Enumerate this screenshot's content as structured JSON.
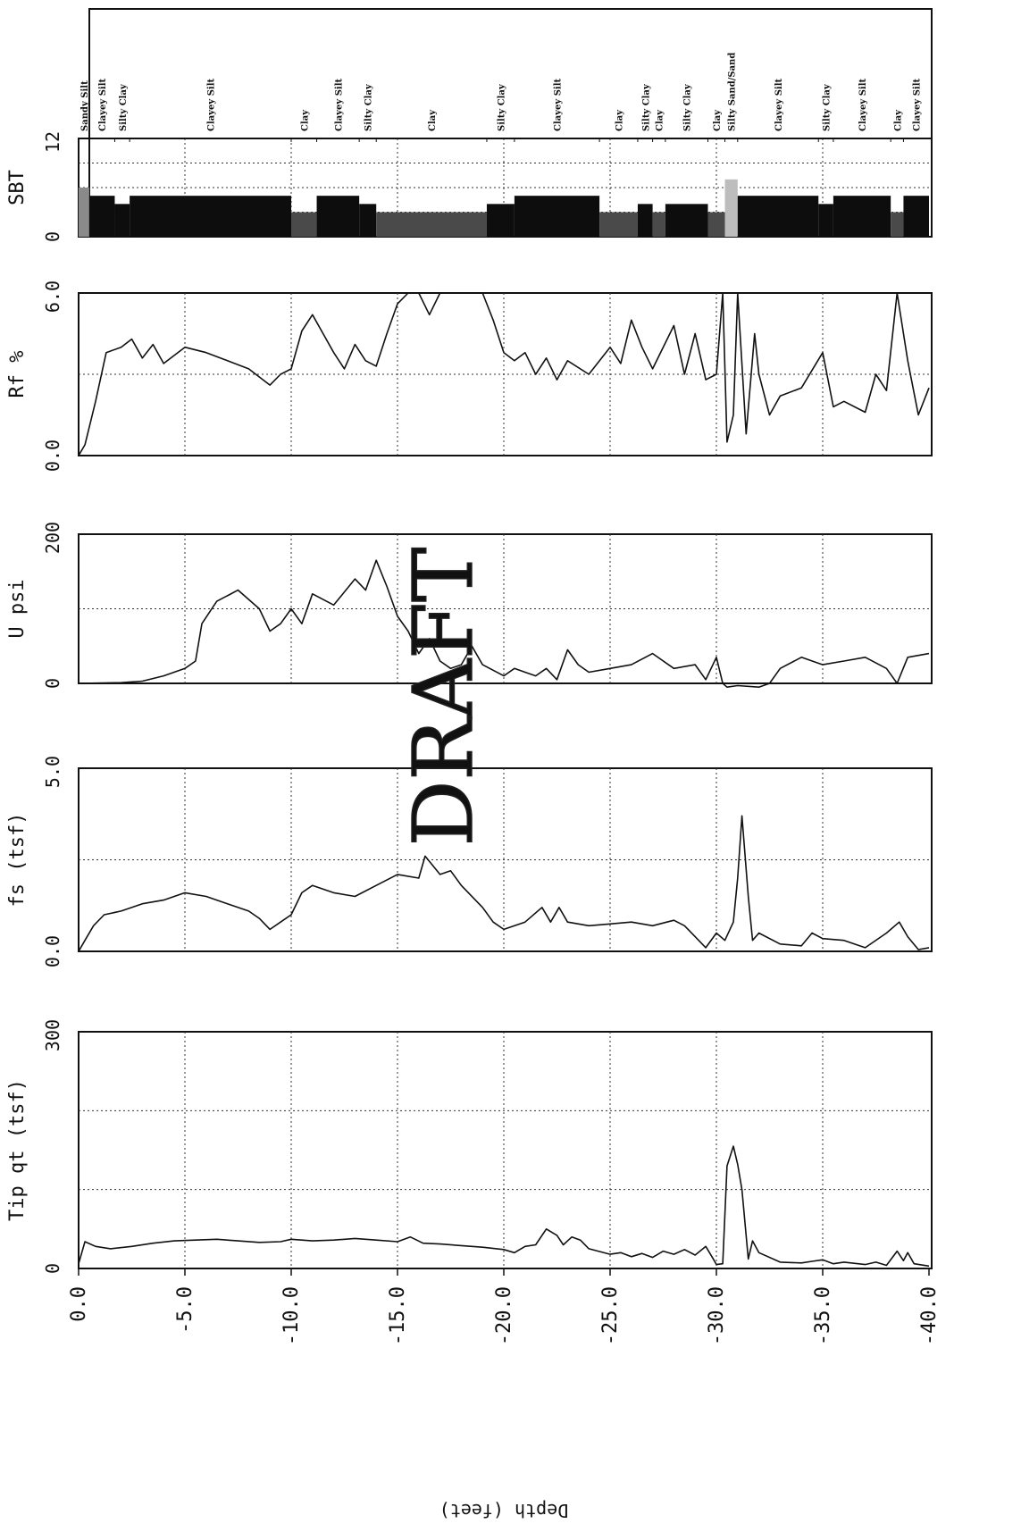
{
  "chart_data": {
    "type": "line",
    "orientation": "rotated-90-ccw",
    "depth_axis": {
      "label": "Depth (feet)",
      "range": [
        0,
        -40
      ],
      "ticks": [
        "0.0",
        "-5.0",
        "-10.0",
        "-15.0",
        "-20.0",
        "-25.0",
        "-30.0",
        "-35.0",
        "-40.0"
      ]
    },
    "watermark": "DRAFT",
    "grid": true,
    "panels": [
      {
        "id": "tip",
        "label": "Tip qt (tsf)",
        "range": [
          0,
          300
        ],
        "tick_labels": [
          "0",
          "300"
        ],
        "gridlines": [
          0,
          100,
          200,
          300
        ],
        "points": [
          [
            0,
            6
          ],
          [
            0.3,
            34
          ],
          [
            0.8,
            28
          ],
          [
            1.5,
            25
          ],
          [
            2.5,
            28
          ],
          [
            3.5,
            32
          ],
          [
            4.5,
            35
          ],
          [
            5.5,
            36
          ],
          [
            6.5,
            37
          ],
          [
            7.5,
            35
          ],
          [
            8.5,
            33
          ],
          [
            9.5,
            34
          ],
          [
            10,
            37
          ],
          [
            11,
            35
          ],
          [
            12,
            36
          ],
          [
            13,
            38
          ],
          [
            14,
            36
          ],
          [
            15,
            34
          ],
          [
            15.6,
            40
          ],
          [
            16.2,
            32
          ],
          [
            17,
            31
          ],
          [
            18,
            29
          ],
          [
            19,
            27
          ],
          [
            20,
            24
          ],
          [
            20.5,
            20
          ],
          [
            21,
            28
          ],
          [
            21.5,
            30
          ],
          [
            22,
            50
          ],
          [
            22.5,
            42
          ],
          [
            22.8,
            30
          ],
          [
            23.2,
            40
          ],
          [
            23.6,
            36
          ],
          [
            24,
            25
          ],
          [
            25,
            18
          ],
          [
            25.5,
            20
          ],
          [
            26,
            15
          ],
          [
            26.5,
            19
          ],
          [
            27,
            14
          ],
          [
            27.5,
            22
          ],
          [
            28,
            18
          ],
          [
            28.5,
            24
          ],
          [
            29,
            17
          ],
          [
            29.5,
            28
          ],
          [
            29.9,
            10
          ],
          [
            30,
            5
          ],
          [
            30.3,
            6
          ],
          [
            30.5,
            130
          ],
          [
            30.8,
            155
          ],
          [
            31,
            132
          ],
          [
            31.2,
            100
          ],
          [
            31.5,
            12
          ],
          [
            31.7,
            35
          ],
          [
            32,
            20
          ],
          [
            33,
            8
          ],
          [
            34,
            7
          ],
          [
            34.5,
            9
          ],
          [
            35,
            11
          ],
          [
            35.5,
            6
          ],
          [
            36,
            8
          ],
          [
            37,
            5
          ],
          [
            37.5,
            8
          ],
          [
            38,
            4
          ],
          [
            38.5,
            22
          ],
          [
            38.8,
            10
          ],
          [
            39,
            20
          ],
          [
            39.3,
            6
          ],
          [
            40,
            3
          ]
        ]
      },
      {
        "id": "fs",
        "label": "fs (tsf)",
        "range": [
          0,
          5
        ],
        "tick_labels": [
          "0.0",
          "5.0"
        ],
        "gridlines": [
          0,
          2.5,
          5
        ],
        "points": [
          [
            0,
            0
          ],
          [
            0.3,
            0.3
          ],
          [
            0.7,
            0.7
          ],
          [
            1.2,
            1.0
          ],
          [
            2,
            1.1
          ],
          [
            3,
            1.3
          ],
          [
            4,
            1.4
          ],
          [
            5,
            1.6
          ],
          [
            6,
            1.5
          ],
          [
            7,
            1.3
          ],
          [
            8,
            1.1
          ],
          [
            8.5,
            0.9
          ],
          [
            9,
            0.6
          ],
          [
            9.5,
            0.8
          ],
          [
            10,
            1.0
          ],
          [
            10.5,
            1.6
          ],
          [
            11,
            1.8
          ],
          [
            12,
            1.6
          ],
          [
            13,
            1.5
          ],
          [
            14,
            1.8
          ],
          [
            15,
            2.1
          ],
          [
            16,
            2.0
          ],
          [
            16.3,
            2.6
          ],
          [
            17,
            2.1
          ],
          [
            17.5,
            2.2
          ],
          [
            18,
            1.8
          ],
          [
            19,
            1.2
          ],
          [
            19.5,
            0.8
          ],
          [
            20,
            0.6
          ],
          [
            21,
            0.8
          ],
          [
            21.8,
            1.2
          ],
          [
            22.2,
            0.8
          ],
          [
            22.6,
            1.2
          ],
          [
            23,
            0.8
          ],
          [
            24,
            0.7
          ],
          [
            25,
            0.75
          ],
          [
            26,
            0.8
          ],
          [
            27,
            0.7
          ],
          [
            28,
            0.85
          ],
          [
            28.5,
            0.7
          ],
          [
            29,
            0.4
          ],
          [
            29.5,
            0.1
          ],
          [
            30,
            0.5
          ],
          [
            30.4,
            0.3
          ],
          [
            30.8,
            0.8
          ],
          [
            31,
            2.0
          ],
          [
            31.2,
            3.7
          ],
          [
            31.5,
            1.5
          ],
          [
            31.7,
            0.3
          ],
          [
            32,
            0.5
          ],
          [
            33,
            0.2
          ],
          [
            34,
            0.15
          ],
          [
            34.5,
            0.5
          ],
          [
            35,
            0.35
          ],
          [
            36,
            0.3
          ],
          [
            37,
            0.1
          ],
          [
            38,
            0.5
          ],
          [
            38.6,
            0.8
          ],
          [
            39,
            0.4
          ],
          [
            39.5,
            0.05
          ],
          [
            40,
            0.1
          ]
        ]
      },
      {
        "id": "u",
        "label": "U psi",
        "range": [
          0,
          200
        ],
        "tick_labels": [
          "0",
          "200"
        ],
        "gridlines": [
          0,
          100,
          200
        ],
        "points": [
          [
            0,
            0
          ],
          [
            2,
            1
          ],
          [
            3,
            3
          ],
          [
            4,
            10
          ],
          [
            5,
            20
          ],
          [
            5.5,
            30
          ],
          [
            5.8,
            80
          ],
          [
            6.5,
            110
          ],
          [
            7.5,
            125
          ],
          [
            8.5,
            100
          ],
          [
            9,
            70
          ],
          [
            9.5,
            80
          ],
          [
            10,
            100
          ],
          [
            10.5,
            80
          ],
          [
            11,
            120
          ],
          [
            12,
            105
          ],
          [
            13,
            140
          ],
          [
            13.5,
            125
          ],
          [
            14,
            165
          ],
          [
            14.5,
            130
          ],
          [
            15,
            90
          ],
          [
            15.5,
            70
          ],
          [
            16,
            40
          ],
          [
            16.5,
            60
          ],
          [
            17,
            30
          ],
          [
            17.5,
            20
          ],
          [
            18,
            25
          ],
          [
            18.5,
            50
          ],
          [
            19,
            25
          ],
          [
            20,
            10
          ],
          [
            20.5,
            20
          ],
          [
            21,
            15
          ],
          [
            21.5,
            10
          ],
          [
            22,
            20
          ],
          [
            22.5,
            5
          ],
          [
            23,
            45
          ],
          [
            23.5,
            25
          ],
          [
            24,
            15
          ],
          [
            25,
            20
          ],
          [
            26,
            25
          ],
          [
            27,
            40
          ],
          [
            28,
            20
          ],
          [
            29,
            25
          ],
          [
            29.5,
            5
          ],
          [
            30,
            35
          ],
          [
            30.3,
            0
          ],
          [
            30.5,
            -5
          ],
          [
            31,
            -3
          ],
          [
            32,
            -5
          ],
          [
            32.5,
            0
          ],
          [
            33,
            20
          ],
          [
            34,
            35
          ],
          [
            35,
            25
          ],
          [
            36,
            30
          ],
          [
            37,
            35
          ],
          [
            38,
            20
          ],
          [
            38.5,
            0
          ],
          [
            39,
            35
          ],
          [
            40,
            40
          ]
        ]
      },
      {
        "id": "rf",
        "label": "Rf %",
        "range": [
          0,
          6
        ],
        "tick_labels": [
          "0.0",
          "6.0"
        ],
        "gridlines": [
          0,
          3,
          6
        ],
        "points": [
          [
            0,
            0
          ],
          [
            0.3,
            0.4
          ],
          [
            0.8,
            2.0
          ],
          [
            1.3,
            3.8
          ],
          [
            2,
            4.0
          ],
          [
            2.5,
            4.3
          ],
          [
            3,
            3.6
          ],
          [
            3.5,
            4.1
          ],
          [
            4,
            3.4
          ],
          [
            5,
            4.0
          ],
          [
            6,
            3.8
          ],
          [
            7,
            3.5
          ],
          [
            8,
            3.2
          ],
          [
            8.5,
            2.9
          ],
          [
            9,
            2.6
          ],
          [
            9.5,
            3.0
          ],
          [
            10,
            3.2
          ],
          [
            10.5,
            4.6
          ],
          [
            11,
            5.2
          ],
          [
            11.5,
            4.5
          ],
          [
            12,
            3.8
          ],
          [
            12.5,
            3.2
          ],
          [
            13,
            4.1
          ],
          [
            13.5,
            3.5
          ],
          [
            14,
            3.3
          ],
          [
            14.5,
            4.5
          ],
          [
            15,
            5.6
          ],
          [
            15.5,
            6.0
          ],
          [
            16,
            6.0
          ],
          [
            16.5,
            5.2
          ],
          [
            17,
            6.0
          ],
          [
            18,
            6.0
          ],
          [
            19,
            6.0
          ],
          [
            19.5,
            5.0
          ],
          [
            20,
            3.8
          ],
          [
            20.5,
            3.5
          ],
          [
            21,
            3.8
          ],
          [
            21.5,
            3.0
          ],
          [
            22,
            3.6
          ],
          [
            22.5,
            2.8
          ],
          [
            23,
            3.5
          ],
          [
            24,
            3.0
          ],
          [
            25,
            4.0
          ],
          [
            25.5,
            3.4
          ],
          [
            26,
            5.0
          ],
          [
            26.5,
            4.0
          ],
          [
            27,
            3.2
          ],
          [
            28,
            4.8
          ],
          [
            28.5,
            3.0
          ],
          [
            29,
            4.5
          ],
          [
            29.5,
            2.8
          ],
          [
            30,
            3.0
          ],
          [
            30.3,
            6.0
          ],
          [
            30.5,
            0.5
          ],
          [
            30.8,
            1.5
          ],
          [
            31,
            6.0
          ],
          [
            31.4,
            0.8
          ],
          [
            31.8,
            4.5
          ],
          [
            32,
            3.0
          ],
          [
            32.5,
            1.5
          ],
          [
            33,
            2.2
          ],
          [
            34,
            2.5
          ],
          [
            35,
            3.8
          ],
          [
            35.5,
            1.8
          ],
          [
            36,
            2.0
          ],
          [
            37,
            1.6
          ],
          [
            37.5,
            3.0
          ],
          [
            38,
            2.4
          ],
          [
            38.5,
            6.0
          ],
          [
            39,
            3.5
          ],
          [
            39.5,
            1.5
          ],
          [
            40,
            2.5
          ]
        ]
      },
      {
        "id": "sbt",
        "label": "SBT",
        "range": [
          0,
          12
        ],
        "tick_labels": [
          "0",
          "12"
        ],
        "gridlines": [
          0,
          3,
          6,
          9,
          12
        ],
        "points": []
      }
    ],
    "sbt_zones": [
      {
        "from": 0.0,
        "to": 0.5,
        "zone": 6,
        "label": "Sandy Silt",
        "color": "#8a8a8a"
      },
      {
        "from": 0.5,
        "to": 1.7,
        "zone": 5,
        "label": "Clayey Silt",
        "color": "#0d0d0d"
      },
      {
        "from": 1.7,
        "to": 2.4,
        "zone": 4,
        "label": "Silty Clay",
        "color": "#0d0d0d"
      },
      {
        "from": 2.4,
        "to": 10.0,
        "zone": 5,
        "label": "Clayey Silt",
        "color": "#0d0d0d"
      },
      {
        "from": 10.0,
        "to": 11.2,
        "zone": 3,
        "label": "Clay",
        "color": "#4a4a4a"
      },
      {
        "from": 11.2,
        "to": 13.2,
        "zone": 5,
        "label": "Clayey Silt",
        "color": "#0d0d0d"
      },
      {
        "from": 13.2,
        "to": 14.0,
        "zone": 4,
        "label": "Silty Clay",
        "color": "#0d0d0d"
      },
      {
        "from": 14.0,
        "to": 19.2,
        "zone": 3,
        "label": "Clay",
        "color": "#4a4a4a"
      },
      {
        "from": 19.2,
        "to": 20.5,
        "zone": 4,
        "label": "Silty Clay",
        "color": "#0d0d0d"
      },
      {
        "from": 20.5,
        "to": 24.5,
        "zone": 5,
        "label": "Clayey Silt",
        "color": "#0d0d0d"
      },
      {
        "from": 24.5,
        "to": 26.3,
        "zone": 3,
        "label": "Clay",
        "color": "#4a4a4a"
      },
      {
        "from": 26.3,
        "to": 27.0,
        "zone": 4,
        "label": "Silty Clay",
        "color": "#0d0d0d"
      },
      {
        "from": 27.0,
        "to": 27.6,
        "zone": 3,
        "label": "Clay",
        "color": "#4a4a4a"
      },
      {
        "from": 27.6,
        "to": 29.6,
        "zone": 4,
        "label": "Silty Clay",
        "color": "#0d0d0d"
      },
      {
        "from": 29.6,
        "to": 30.4,
        "zone": 3,
        "label": "Clay",
        "color": "#4a4a4a"
      },
      {
        "from": 30.4,
        "to": 31.0,
        "zone": 7,
        "label": "Silty Sand/Sand",
        "color": "#bdbdbd"
      },
      {
        "from": 31.0,
        "to": 34.8,
        "zone": 5,
        "label": "Clayey Silt",
        "color": "#0d0d0d"
      },
      {
        "from": 34.8,
        "to": 35.5,
        "zone": 4,
        "label": "Silty Clay",
        "color": "#0d0d0d"
      },
      {
        "from": 35.5,
        "to": 38.2,
        "zone": 5,
        "label": "Clayey Silt",
        "color": "#0d0d0d"
      },
      {
        "from": 38.2,
        "to": 38.8,
        "zone": 3,
        "label": "Clay",
        "color": "#4a4a4a"
      },
      {
        "from": 38.8,
        "to": 40.0,
        "zone": 5,
        "label": "Clayey Silt",
        "color": "#0d0d0d"
      }
    ]
  }
}
